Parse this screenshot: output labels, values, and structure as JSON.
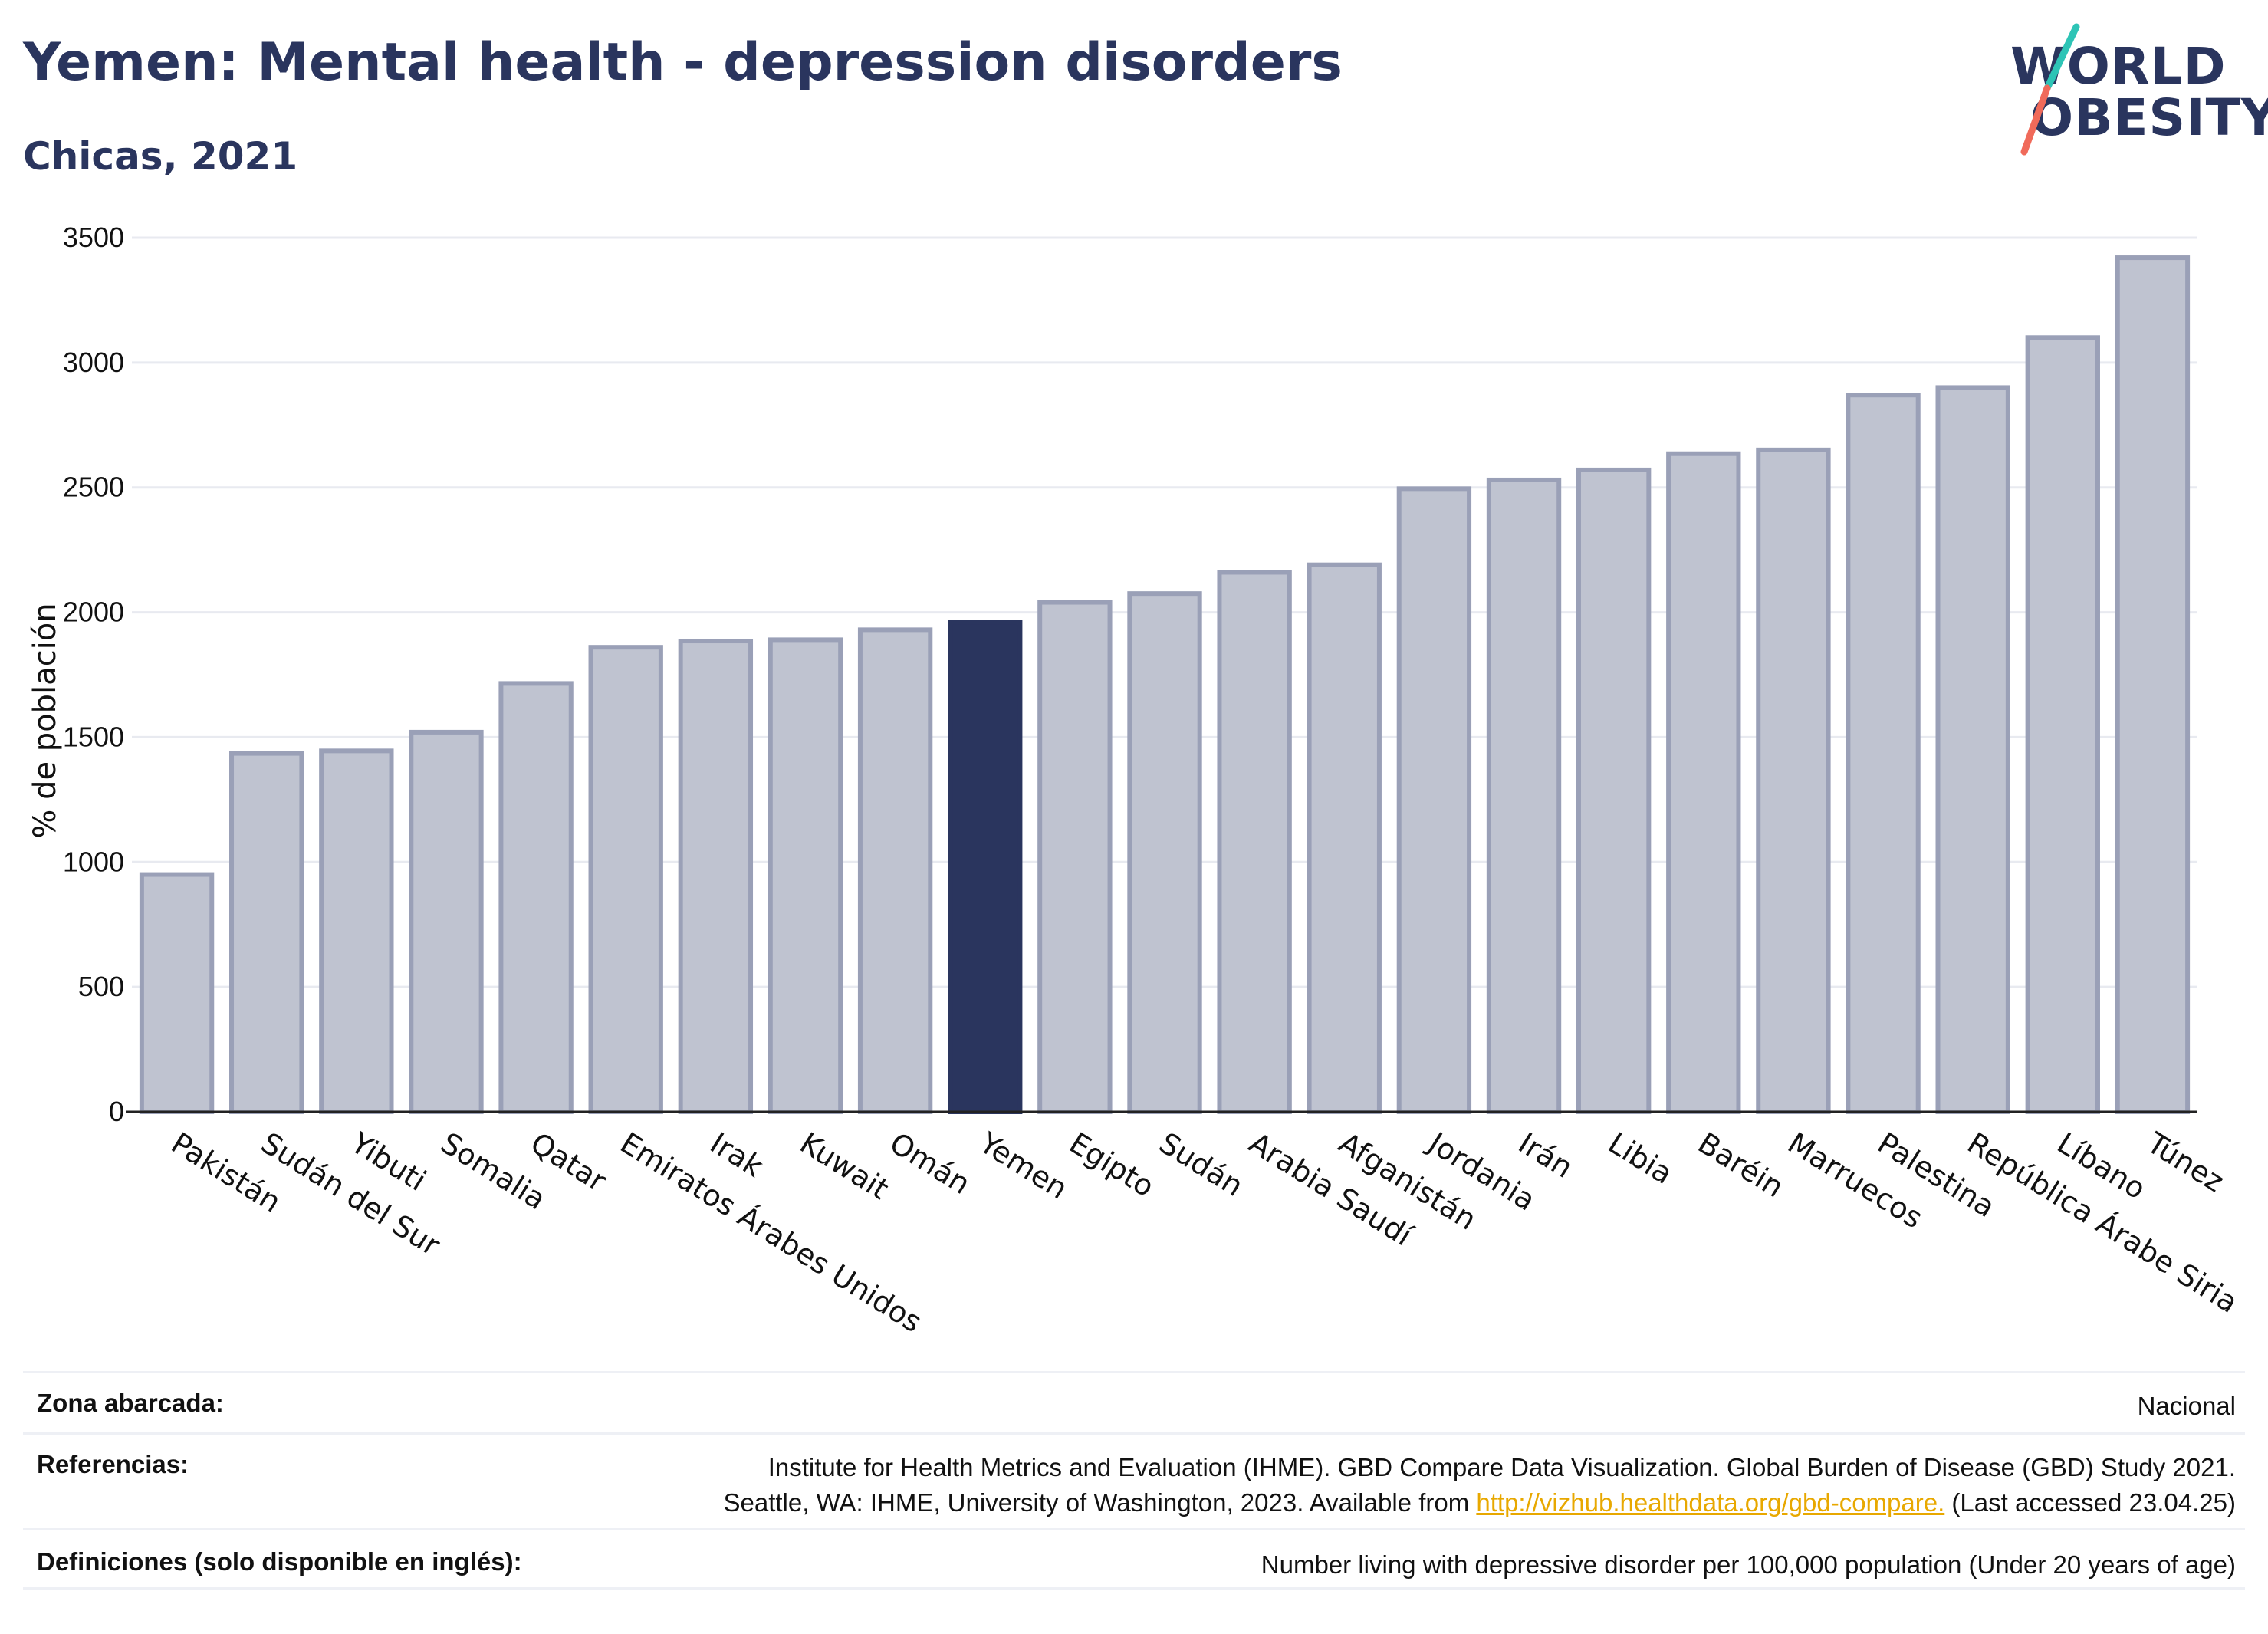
{
  "header": {
    "title": "Yemen: Mental health - depression disorders",
    "subtitle": "Chicas, 2021"
  },
  "logo": {
    "line1": "WORLD",
    "line2": "OBESITY",
    "colors": {
      "text": "#2a355e",
      "slash_top": "#2ec4b6",
      "slash_bottom": "#f06a5a"
    }
  },
  "chart_data": {
    "type": "bar",
    "ylabel": "% de población",
    "xlabel": "",
    "ylim": [
      0,
      3500
    ],
    "yticks": [
      0,
      500,
      1000,
      1500,
      2000,
      2500,
      3000,
      3500
    ],
    "grid": true,
    "highlight": "Yemen",
    "colors": {
      "bar": "#bfc3d0",
      "bar_edge": "#9aa0b7",
      "highlight": "#2a355e",
      "grid": "#e8eaf0"
    },
    "categories": [
      "Pakistán",
      "Sudán del Sur",
      "Yibuti",
      "Somalia",
      "Qatar",
      "Emiratos Árabes Unidos",
      "Irak",
      "Kuwait",
      "Omán",
      "Yemen",
      "Egipto",
      "Sudán",
      "Arabia Saudí",
      "Afganistán",
      "Jordania",
      "Irán",
      "Libia",
      "Baréin",
      "Marruecos",
      "Palestina",
      "República Árabe Siria",
      "Líbano",
      "Túnez"
    ],
    "values": [
      950,
      1435,
      1445,
      1520,
      1715,
      1860,
      1885,
      1890,
      1930,
      1960,
      2040,
      2075,
      2160,
      2190,
      2495,
      2530,
      2570,
      2635,
      2650,
      2870,
      2900,
      3100,
      3420
    ]
  },
  "footer": {
    "rows": [
      {
        "label": "Zona abarcada:",
        "lines": [
          "Nacional"
        ]
      },
      {
        "label": "Referencias:",
        "lines": [
          "Institute for Health Metrics and Evaluation (IHME). GBD Compare Data Visualization. Global Burden of Disease (GBD) Study 2021."
        ],
        "line2_pre": "Seattle, WA: IHME, University of Washington, 2023. Available from ",
        "line2_link": "http://vizhub.healthdata.org/gbd-compare.",
        "line2_post": " (Last accessed 23.04.25)"
      },
      {
        "label": "Definiciones (solo disponible en inglés):",
        "lines": [
          "Number living with depressive disorder per 100,000 population (Under 20 years of age)"
        ]
      }
    ]
  }
}
